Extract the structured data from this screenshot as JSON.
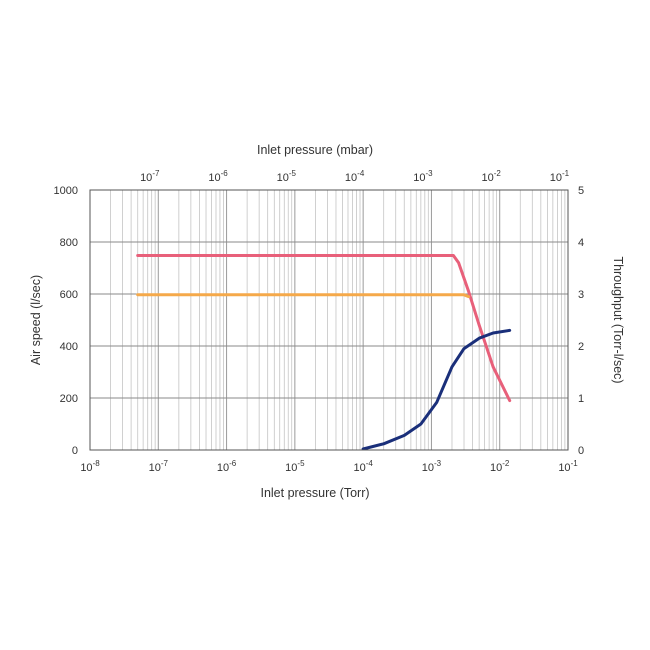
{
  "chart_data": {
    "type": "line",
    "x_scale": "log",
    "x_axes": {
      "bottom": {
        "label": "Inlet pressure (Torr)",
        "range": [
          1e-08,
          0.1
        ],
        "ticks": [
          {
            "base": "10",
            "exp": "-8",
            "value": 1e-08
          },
          {
            "base": "10",
            "exp": "-7",
            "value": 1e-07
          },
          {
            "base": "10",
            "exp": "-6",
            "value": 1e-06
          },
          {
            "base": "10",
            "exp": "-5",
            "value": 1e-05
          },
          {
            "base": "10",
            "exp": "-4",
            "value": 0.0001
          },
          {
            "base": "10",
            "exp": "-3",
            "value": 0.001
          },
          {
            "base": "10",
            "exp": "-2",
            "value": 0.01
          },
          {
            "base": "10",
            "exp": "-1",
            "value": 0.1
          }
        ]
      },
      "top": {
        "label": "Inlet pressure (mbar)",
        "ticks": [
          {
            "base": "10",
            "exp": "-7",
            "torr": 7.5e-08
          },
          {
            "base": "10",
            "exp": "-6",
            "torr": 7.5e-07
          },
          {
            "base": "10",
            "exp": "-5",
            "torr": 7.5e-06
          },
          {
            "base": "10",
            "exp": "-4",
            "torr": 7.5e-05
          },
          {
            "base": "10",
            "exp": "-3",
            "torr": 0.00075
          },
          {
            "base": "10",
            "exp": "-2",
            "torr": 0.0075
          },
          {
            "base": "10",
            "exp": "-1",
            "torr": 0.075
          }
        ]
      }
    },
    "y_axes": {
      "left": {
        "label": "Air speed (l/sec)",
        "range": [
          0,
          1000
        ],
        "ticks": [
          "0",
          "200",
          "400",
          "600",
          "800",
          "1000"
        ]
      },
      "right": {
        "label": "Throughput (Torr-l/sec)",
        "range": [
          0,
          5
        ],
        "ticks": [
          "0",
          "1",
          "2",
          "3",
          "4",
          "5"
        ]
      }
    },
    "grid": true,
    "legend": "none",
    "series": [
      {
        "axis": "left",
        "color": "#e8607a",
        "x": [
          5e-08,
          1e-07,
          1e-06,
          1e-05,
          0.0001,
          0.001,
          0.0021,
          0.0025,
          0.0035,
          0.005,
          0.008,
          0.014
        ],
        "y": [
          748,
          748,
          748,
          748,
          748,
          748,
          748,
          720,
          610,
          480,
          320,
          190
        ]
      },
      {
        "axis": "left",
        "color": "#f5a94a",
        "x": [
          5e-08,
          1e-07,
          1e-06,
          1e-05,
          0.0001,
          0.001,
          0.002,
          0.003,
          0.0035
        ],
        "y": [
          597,
          597,
          597,
          597,
          597,
          597,
          597,
          597,
          590
        ]
      },
      {
        "axis": "right",
        "color": "#1a2f7a",
        "x": [
          0.0001,
          0.0002,
          0.0004,
          0.0007,
          0.0012,
          0.002,
          0.003,
          0.005,
          0.008,
          0.014
        ],
        "y": [
          0.02,
          0.12,
          0.28,
          0.5,
          0.92,
          1.6,
          1.95,
          2.15,
          2.25,
          2.3
        ]
      }
    ]
  }
}
